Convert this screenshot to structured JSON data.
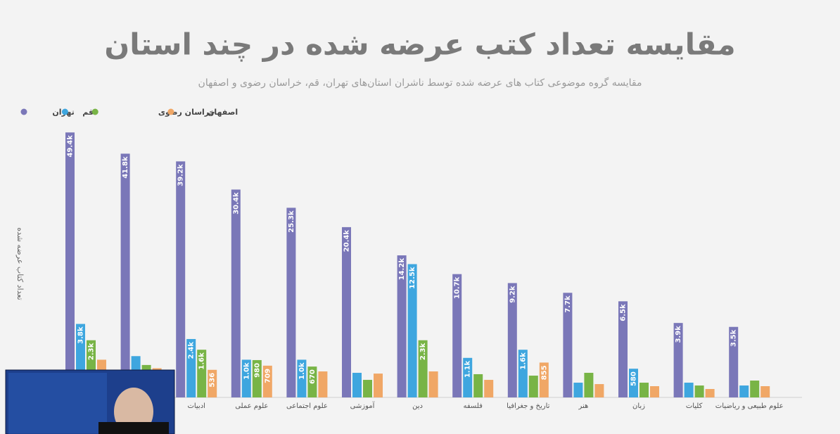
{
  "chart_data": {
    "type": "bar",
    "scale": "sqrt",
    "title": "مقایسه تعداد کتب عرضه شده در چند استان",
    "subtitle": "مقایسه گروه موضوعی کتاب های عرضه شده توسط ناشران استان‌های تهران، قم، خراسان رضوی و اصفهان",
    "y_label": "تعداد کتاب عرضه شده",
    "legend": "top-left",
    "ylim": [
      0,
      50000
    ],
    "categories": [
      null,
      null,
      "ادبیات",
      "علوم عملی",
      "علوم اجتماعی",
      "آموزشی",
      "دین",
      "فلسفه",
      "تاریخ و جغرافیا",
      "هنر",
      "زبان",
      "کلیات",
      "علوم طبیعی و ریاضیات"
    ],
    "series": [
      {
        "name": "تهران",
        "color": "#7a77b8",
        "values": [
          49400,
          41800,
          39200,
          30400,
          25300,
          20400,
          14200,
          10700,
          9200,
          7700,
          6500,
          3900,
          3500
        ],
        "value_labels": [
          "49.4k",
          "41.8k",
          "39.2k",
          "30.4k",
          "25.3k",
          "20.4k",
          "14.2k",
          "10.7k",
          "9.2k",
          "7.7k",
          "6.5k",
          "3.9k",
          "3.5k"
        ]
      },
      {
        "name": "قم",
        "color": "#3ea6df",
        "values": [
          3800,
          1200,
          2400,
          1000,
          1000,
          426,
          12500,
          1100,
          1600,
          153,
          580,
          153,
          100
        ],
        "value_labels": [
          "3.8k",
          null,
          "2.4k",
          "1.0k",
          "1.0k",
          null,
          "12.5k",
          "1.1k",
          "1.6k",
          null,
          "580",
          null,
          null
        ]
      },
      {
        "name": "خراسان رضوی",
        "color": "#78b446",
        "values": [
          2300,
          740,
          1600,
          980,
          670,
          217,
          2300,
          380,
          334,
          426,
          153,
          100,
          200
        ],
        "value_labels": [
          "2.3k",
          null,
          "1.6k",
          "980",
          "670",
          null,
          "2.3k",
          null,
          null,
          null,
          null,
          null,
          null
        ]
      },
      {
        "name": "اصفهان",
        "color": "#f0a766",
        "values": [
          1000,
          600,
          536,
          709,
          476,
          400,
          476,
          217,
          855,
          125,
          89,
          50,
          89
        ],
        "value_labels": [
          null,
          null,
          "536",
          "709",
          null,
          null,
          null,
          null,
          "855",
          null,
          null,
          null,
          null
        ]
      }
    ]
  }
}
